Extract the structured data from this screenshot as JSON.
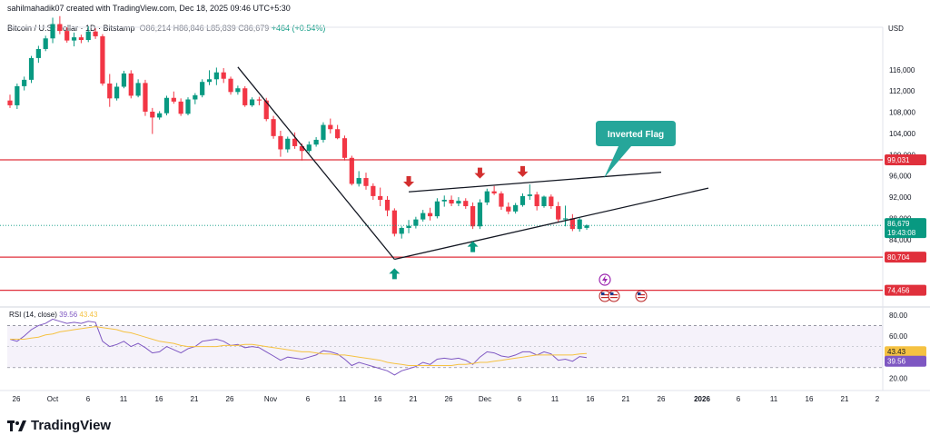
{
  "header": {
    "creator_line": "sahilmahadik07 created with TradingView.com, Dec 18, 2025 09:46 UTC+5:30",
    "symbol": "Bitcoin / U.S. Dollar · 1D · Bitstamp",
    "open": "O86,214",
    "high": "H86,846",
    "low": "L85,839",
    "close": "C86,679",
    "change": "+464 (+0.54%)"
  },
  "brand": {
    "name": "TradingView",
    "logo_icon": "tradingview-logo-icon"
  },
  "colors": {
    "up": "#089981",
    "down": "#f23645",
    "level": "#e0303c",
    "rsi_line": "#7e57c2",
    "rsi_ma": "#f5c242",
    "trend": "#131722",
    "callout": "#26a69a",
    "arrow_up": "#089981",
    "arrow_down": "#d32f2f"
  },
  "chart_data": [
    {
      "type": "candlestick",
      "title": "Bitcoin / U.S. Dollar · 1D · Bitstamp",
      "currency_label": "USD",
      "ylim": [
        72000,
        124000
      ],
      "x_tick_labels": [
        "26",
        "Oct",
        "6",
        "11",
        "16",
        "21",
        "26",
        "Nov",
        "6",
        "11",
        "16",
        "21",
        "26",
        "Dec",
        "6",
        "11",
        "16",
        "21",
        "26",
        "2026",
        "6",
        "11",
        "16",
        "21",
        "2"
      ],
      "y_tick_labels": [
        "116,000",
        "112,000",
        "108,000",
        "104,000",
        "100,000",
        "96,000",
        "92,000",
        "88,000",
        "84,000"
      ],
      "candles": [
        [
          110200,
          111300,
          108800,
          109300
        ],
        [
          109300,
          113400,
          108600,
          112900
        ],
        [
          112900,
          114700,
          112100,
          114100
        ],
        [
          114100,
          118600,
          113500,
          118200
        ],
        [
          118200,
          120500,
          117300,
          119900
        ],
        [
          119900,
          122400,
          119500,
          121900
        ],
        [
          121900,
          125800,
          121000,
          124600
        ],
        [
          124600,
          126100,
          122700,
          123300
        ],
        [
          123300,
          124000,
          121100,
          121500
        ],
        [
          121500,
          123000,
          120400,
          122100
        ],
        [
          122100,
          122600,
          121000,
          121600
        ],
        [
          121600,
          124200,
          121200,
          123200
        ],
        [
          123200,
          123800,
          121800,
          122300
        ],
        [
          122300,
          122700,
          113000,
          113400
        ],
        [
          113400,
          115200,
          109000,
          110600
        ],
        [
          110600,
          113500,
          110200,
          112800
        ],
        [
          112800,
          115800,
          112500,
          115300
        ],
        [
          115300,
          115900,
          110600,
          111100
        ],
        [
          111100,
          114200,
          110800,
          113500
        ],
        [
          113500,
          114100,
          107300,
          108100
        ],
        [
          108100,
          108800,
          103900,
          107000
        ],
        [
          107000,
          108200,
          106600,
          107800
        ],
        [
          107800,
          111100,
          107400,
          110700
        ],
        [
          110700,
          111900,
          109600,
          110000
        ],
        [
          110000,
          110600,
          107300,
          107700
        ],
        [
          107700,
          110800,
          107400,
          110400
        ],
        [
          110400,
          111600,
          109500,
          111200
        ],
        [
          111200,
          114200,
          110800,
          113700
        ],
        [
          113700,
          115900,
          113100,
          114200
        ],
        [
          114200,
          116400,
          113100,
          115500
        ],
        [
          115500,
          116300,
          113500,
          114300
        ],
        [
          114300,
          114700,
          111300,
          111800
        ],
        [
          111800,
          113000,
          111300,
          112500
        ],
        [
          112500,
          112900,
          109000,
          109300
        ],
        [
          109300,
          110800,
          109000,
          110400
        ],
        [
          110400,
          110900,
          109300,
          110200
        ],
        [
          110200,
          110700,
          106300,
          106700
        ],
        [
          106700,
          107300,
          103000,
          103500
        ],
        [
          103500,
          104500,
          99600,
          101000
        ],
        [
          101000,
          103400,
          100400,
          103000
        ],
        [
          103000,
          104200,
          101100,
          101600
        ],
        [
          101600,
          102100,
          98900,
          100700
        ],
        [
          100700,
          102500,
          100300,
          101900
        ],
        [
          101900,
          103300,
          101500,
          102800
        ],
        [
          102800,
          106100,
          102300,
          105600
        ],
        [
          105600,
          106800,
          104000,
          104800
        ],
        [
          104800,
          105600,
          102900,
          103100
        ],
        [
          103100,
          103600,
          98900,
          99400
        ],
        [
          99400,
          99800,
          94200,
          94500
        ],
        [
          94500,
          96900,
          94000,
          95600
        ],
        [
          95600,
          96600,
          93400,
          94100
        ],
        [
          94100,
          94600,
          91500,
          92200
        ],
        [
          92200,
          93800,
          90300,
          91500
        ],
        [
          91500,
          92200,
          88400,
          89500
        ],
        [
          89500,
          89900,
          84600,
          85100
        ],
        [
          85100,
          86500,
          84200,
          86200
        ],
        [
          86200,
          87700,
          85200,
          86600
        ],
        [
          86600,
          88300,
          86100,
          87800
        ],
        [
          87800,
          89600,
          87400,
          89000
        ],
        [
          89000,
          90000,
          87600,
          88400
        ],
        [
          88400,
          91800,
          88000,
          91200
        ],
        [
          91200,
          92300,
          90200,
          91500
        ],
        [
          91500,
          92300,
          90300,
          90800
        ],
        [
          90800,
          92000,
          90300,
          91300
        ],
        [
          91300,
          91800,
          89800,
          90300
        ],
        [
          90300,
          91000,
          86000,
          86500
        ],
        [
          86500,
          91600,
          86000,
          91000
        ],
        [
          91000,
          93600,
          90500,
          93100
        ],
        [
          93100,
          94100,
          92400,
          92700
        ],
        [
          92700,
          93100,
          89600,
          90200
        ],
        [
          90200,
          91000,
          88800,
          89300
        ],
        [
          89300,
          90900,
          88900,
          90500
        ],
        [
          90500,
          92700,
          90200,
          92200
        ],
        [
          92200,
          94400,
          91500,
          92500
        ],
        [
          92500,
          93000,
          89500,
          90300
        ],
        [
          90300,
          92300,
          90000,
          92100
        ],
        [
          92100,
          92500,
          89800,
          90300
        ],
        [
          90300,
          91100,
          87400,
          87800
        ],
        [
          87800,
          90400,
          86500,
          88000
        ],
        [
          88000,
          88800,
          85600,
          86000
        ],
        [
          86000,
          88100,
          85500,
          87800
        ],
        [
          86214,
          86846,
          85839,
          86679
        ]
      ],
      "levels": [
        {
          "value": 99031,
          "label": "99,031"
        },
        {
          "value": 80704,
          "label": "80,704"
        },
        {
          "value": 74456,
          "label": "74,456"
        }
      ],
      "last_price": {
        "value": 86679,
        "label": "86,679",
        "countdown": "19:43:08"
      },
      "annotations": {
        "callout": "Inverted Flag"
      }
    },
    {
      "type": "line",
      "title": "RSI (14, close)",
      "legend_values": [
        "39.56",
        "43.43"
      ],
      "ylim": [
        10,
        85
      ],
      "y_tick_labels": [
        "80.00",
        "60.00",
        "20.00"
      ],
      "guide_levels": [
        70,
        30
      ],
      "series": [
        {
          "name": "RSI",
          "value_label": "39.56",
          "values": [
            57,
            55,
            60,
            66,
            70,
            72,
            76,
            74,
            72,
            73,
            72,
            74,
            73,
            55,
            50,
            52,
            55,
            50,
            53,
            49,
            44,
            45,
            50,
            47,
            44,
            48,
            50,
            55,
            56,
            57,
            55,
            51,
            52,
            49,
            50,
            49,
            45,
            41,
            37,
            40,
            39,
            38,
            40,
            42,
            46,
            45,
            43,
            38,
            32,
            35,
            33,
            31,
            29,
            27,
            23,
            27,
            29,
            31,
            35,
            33,
            38,
            39,
            38,
            39,
            37,
            33,
            40,
            45,
            44,
            41,
            40,
            42,
            45,
            45,
            42,
            45,
            43,
            37,
            38,
            36,
            40.5,
            39.56
          ]
        },
        {
          "name": "RSI-based MA",
          "value_label": "43.43",
          "values": [
            57,
            57,
            57,
            58,
            59,
            61,
            62,
            64,
            65,
            66,
            67,
            68,
            69,
            68,
            67,
            66,
            64,
            63,
            61,
            59,
            57,
            55,
            54,
            53,
            51,
            50,
            50,
            50,
            50,
            50,
            51,
            51,
            51,
            52,
            52,
            51,
            50,
            49,
            48,
            47,
            46,
            45,
            45,
            44,
            43,
            43,
            42,
            42,
            41,
            40,
            39,
            38,
            37,
            35,
            34,
            33,
            32,
            32,
            32,
            32,
            32,
            32,
            32,
            33,
            33,
            34,
            35,
            35,
            36,
            37,
            38,
            39,
            40,
            41,
            42,
            42,
            42,
            42,
            42,
            42,
            43,
            43.43
          ]
        }
      ],
      "x_tick_labels": [
        "26",
        "Oct",
        "6",
        "11",
        "16",
        "21",
        "26",
        "Nov",
        "6",
        "11",
        "16",
        "21",
        "26",
        "Dec",
        "6",
        "11",
        "16",
        "21",
        "26",
        "2026",
        "6",
        "11",
        "16",
        "21",
        "2"
      ]
    }
  ]
}
